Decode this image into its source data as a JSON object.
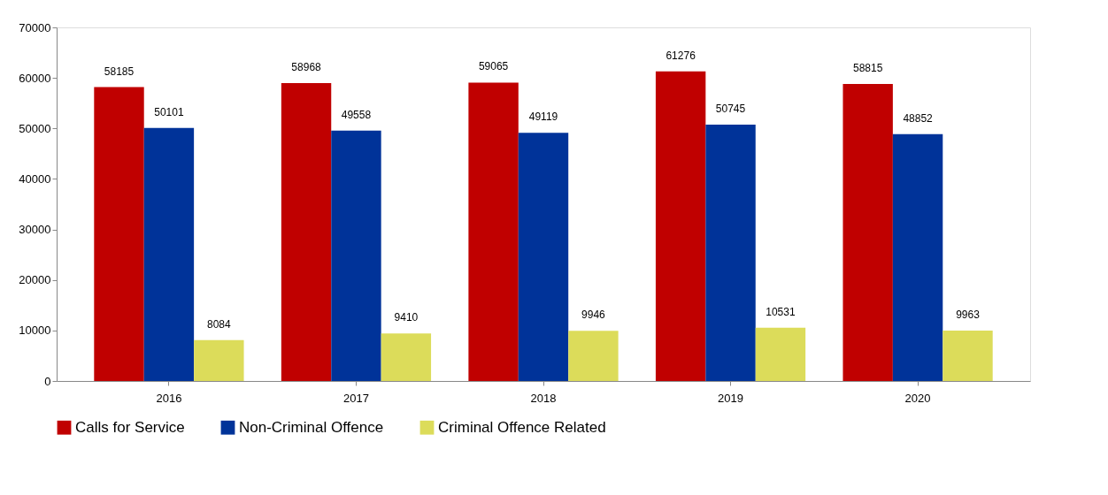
{
  "chart_data": {
    "type": "bar",
    "categories": [
      "2016",
      "2017",
      "2018",
      "2019",
      "2020"
    ],
    "series": [
      {
        "name": "Calls for Service",
        "color": "#c00000",
        "values": [
          58185,
          58968,
          59065,
          61276,
          58815
        ]
      },
      {
        "name": "Non-Criminal Offence",
        "color": "#003399",
        "values": [
          50101,
          49558,
          49119,
          50745,
          48852
        ]
      },
      {
        "name": "Criminal Offence Related",
        "color": "#dcdc5a",
        "values": [
          8084,
          9410,
          9946,
          10531,
          9963
        ]
      }
    ],
    "ylim": [
      0,
      70000
    ],
    "yticks": [
      0,
      10000,
      20000,
      30000,
      40000,
      50000,
      60000,
      70000
    ],
    "data_labels": true,
    "legend": "bottom",
    "grid": false
  }
}
